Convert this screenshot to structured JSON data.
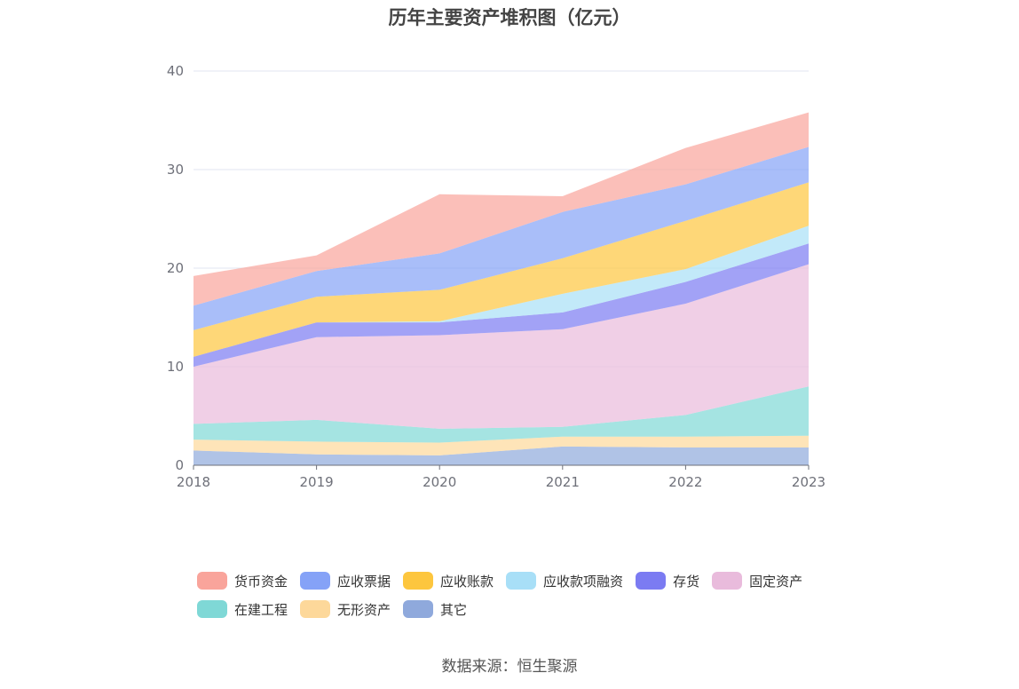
{
  "chart_data": {
    "type": "area",
    "stacked": true,
    "title": "历年主要资产堆积图（亿元）",
    "categories": [
      "2018",
      "2019",
      "2020",
      "2021",
      "2022",
      "2023"
    ],
    "ylim": [
      0,
      40
    ],
    "yticks": [
      "0",
      "10",
      "20",
      "30",
      "40"
    ],
    "grid": true,
    "legend_position": "bottom",
    "series": [
      {
        "name": "其它",
        "color": "#8fa9dc",
        "values": [
          1.5,
          1.1,
          1.0,
          1.9,
          1.8,
          1.8
        ]
      },
      {
        "name": "无形资产",
        "color": "#fdd89a",
        "values": [
          1.1,
          1.3,
          1.3,
          1.0,
          1.1,
          1.2
        ]
      },
      {
        "name": "在建工程",
        "color": "#7fd8d6",
        "values": [
          1.6,
          2.2,
          1.4,
          1.0,
          2.2,
          5.0
        ]
      },
      {
        "name": "固定资产",
        "color": "#e9bbdc",
        "values": [
          5.8,
          8.4,
          9.5,
          9.9,
          11.3,
          12.4
        ]
      },
      {
        "name": "存货",
        "color": "#7b7bf2",
        "values": [
          1.0,
          1.5,
          1.3,
          1.7,
          2.2,
          2.1
        ]
      },
      {
        "name": "应收款项融资",
        "color": "#a8dff7",
        "values": [
          0.0,
          0.0,
          0.1,
          1.9,
          1.3,
          1.8
        ]
      },
      {
        "name": "应收账款",
        "color": "#fdc63e",
        "values": [
          2.7,
          2.6,
          3.2,
          3.6,
          4.9,
          4.4
        ]
      },
      {
        "name": "应收票据",
        "color": "#85a2f7",
        "values": [
          2.5,
          2.6,
          3.7,
          4.7,
          3.7,
          3.6
        ]
      },
      {
        "name": "货币资金",
        "color": "#f9a49b",
        "values": [
          3.0,
          1.6,
          6.0,
          1.6,
          3.7,
          3.5
        ]
      }
    ],
    "legend_order": [
      "货币资金",
      "应收票据",
      "应收账款",
      "应收款项融资",
      "存货",
      "固定资产",
      "在建工程",
      "无形资产",
      "其它"
    ]
  },
  "source": "数据来源：恒生聚源"
}
